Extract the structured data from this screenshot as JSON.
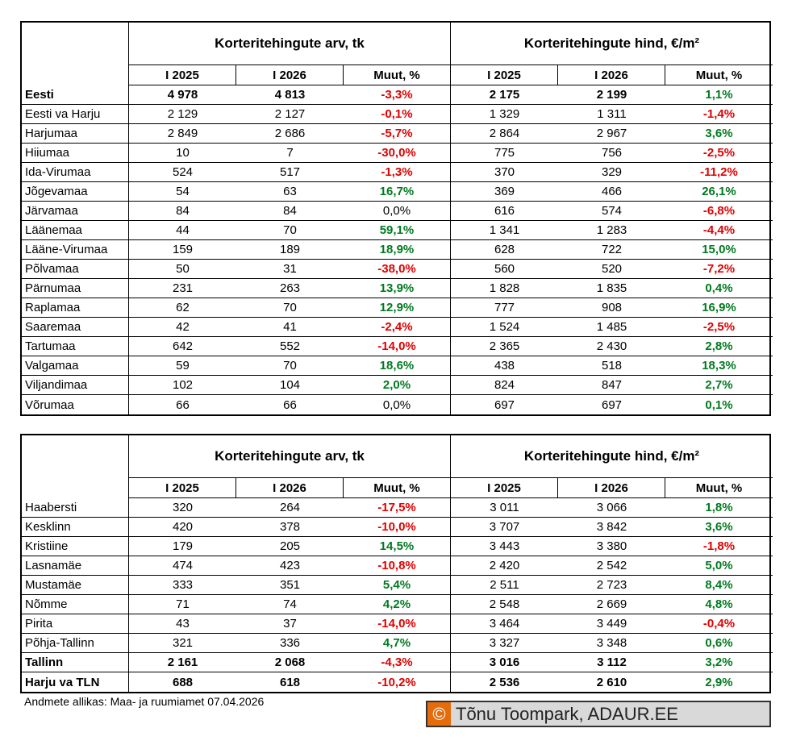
{
  "tables": [
    {
      "header_groups": [
        "Korteritehingute arv, tk",
        "Korteritehingute hind, €/m²"
      ],
      "columns": [
        "I 2025",
        "I 2026",
        "Muut, %",
        "I 2025",
        "I 2026",
        "Muut, %"
      ],
      "bold_rows": [
        0
      ],
      "rows": [
        [
          "Eesti",
          "4 978",
          "4 813",
          "-3,3%",
          "2 175",
          "2 199",
          "1,1%"
        ],
        [
          "Eesti va Harju",
          "2 129",
          "2 127",
          "-0,1%",
          "1 329",
          "1 311",
          "-1,4%"
        ],
        [
          "Harjumaa",
          "2 849",
          "2 686",
          "-5,7%",
          "2 864",
          "2 967",
          "3,6%"
        ],
        [
          "Hiiumaa",
          "10",
          "7",
          "-30,0%",
          "775",
          "756",
          "-2,5%"
        ],
        [
          "Ida-Virumaa",
          "524",
          "517",
          "-1,3%",
          "370",
          "329",
          "-11,2%"
        ],
        [
          "Jõgevamaa",
          "54",
          "63",
          "16,7%",
          "369",
          "466",
          "26,1%"
        ],
        [
          "Järvamaa",
          "84",
          "84",
          "0,0%",
          "616",
          "574",
          "-6,8%"
        ],
        [
          "Läänemaa",
          "44",
          "70",
          "59,1%",
          "1 341",
          "1 283",
          "-4,4%"
        ],
        [
          "Lääne-Virumaa",
          "159",
          "189",
          "18,9%",
          "628",
          "722",
          "15,0%"
        ],
        [
          "Põlvamaa",
          "50",
          "31",
          "-38,0%",
          "560",
          "520",
          "-7,2%"
        ],
        [
          "Pärnumaa",
          "231",
          "263",
          "13,9%",
          "1 828",
          "1 835",
          "0,4%"
        ],
        [
          "Raplamaa",
          "62",
          "70",
          "12,9%",
          "777",
          "908",
          "16,9%"
        ],
        [
          "Saaremaa",
          "42",
          "41",
          "-2,4%",
          "1 524",
          "1 485",
          "-2,5%"
        ],
        [
          "Tartumaa",
          "642",
          "552",
          "-14,0%",
          "2 365",
          "2 430",
          "2,8%"
        ],
        [
          "Valgamaa",
          "59",
          "70",
          "18,6%",
          "438",
          "518",
          "18,3%"
        ],
        [
          "Viljandimaa",
          "102",
          "104",
          "2,0%",
          "824",
          "847",
          "2,7%"
        ],
        [
          "Võrumaa",
          "66",
          "66",
          "0,0%",
          "697",
          "697",
          "0,1%"
        ]
      ]
    },
    {
      "header_groups": [
        "Korteritehingute arv, tk",
        "Korteritehingute hind, €/m²"
      ],
      "columns": [
        "I 2025",
        "I 2026",
        "Muut, %",
        "I 2025",
        "I 2026",
        "Muut, %"
      ],
      "bold_rows": [
        8,
        9
      ],
      "rows": [
        [
          "Haabersti",
          "320",
          "264",
          "-17,5%",
          "3 011",
          "3 066",
          "1,8%"
        ],
        [
          "Kesklinn",
          "420",
          "378",
          "-10,0%",
          "3 707",
          "3 842",
          "3,6%"
        ],
        [
          "Kristiine",
          "179",
          "205",
          "14,5%",
          "3 443",
          "3 380",
          "-1,8%"
        ],
        [
          "Lasnamäe",
          "474",
          "423",
          "-10,8%",
          "2 420",
          "2 542",
          "5,0%"
        ],
        [
          "Mustamäe",
          "333",
          "351",
          "5,4%",
          "2 511",
          "2 723",
          "8,4%"
        ],
        [
          "Nõmme",
          "71",
          "74",
          "4,2%",
          "2 548",
          "2 669",
          "4,8%"
        ],
        [
          "Pirita",
          "43",
          "37",
          "-14,0%",
          "3 464",
          "3 449",
          "-0,4%"
        ],
        [
          "Põhja-Tallinn",
          "321",
          "336",
          "4,7%",
          "3 327",
          "3 348",
          "0,6%"
        ],
        [
          "Tallinn",
          "2 161",
          "2 068",
          "-4,3%",
          "3 016",
          "3 112",
          "3,2%"
        ],
        [
          "Harju va TLN",
          "688",
          "618",
          "-10,2%",
          "2 536",
          "2 610",
          "2,9%"
        ]
      ]
    }
  ],
  "source": "Andmete allikas: Maa- ja ruumiamet 07.04.2026",
  "copyright": {
    "symbol": "©",
    "text": "Tõnu Toompark, ADAUR.EE"
  }
}
